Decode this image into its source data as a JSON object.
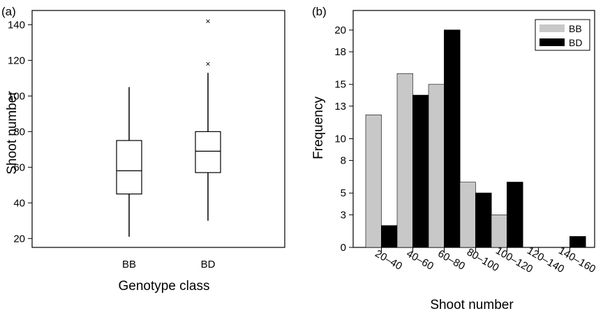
{
  "chart_data": [
    {
      "panel_label": "(a)",
      "type": "box",
      "xlabel": "Genotype class",
      "ylabel": "Shoot number",
      "ylim": [
        15,
        148
      ],
      "yticks": [
        20,
        40,
        60,
        80,
        100,
        120,
        140
      ],
      "categories": [
        "BB",
        "BD"
      ],
      "boxes": [
        {
          "category": "BB",
          "whisker_low": 21,
          "q1": 45,
          "median": 58,
          "q3": 75,
          "whisker_high": 105,
          "outliers": []
        },
        {
          "category": "BD",
          "whisker_low": 30,
          "q1": 57,
          "median": 69,
          "q3": 80,
          "whisker_high": 113,
          "outliers": [
            118,
            142
          ]
        }
      ],
      "grid": false
    },
    {
      "panel_label": "(b)",
      "type": "bar",
      "xlabel": "Shoot number",
      "ylabel": "Frequency",
      "ylim": [
        0,
        21.8
      ],
      "yticks": [
        0,
        3,
        5,
        8,
        10,
        13,
        15,
        18,
        20
      ],
      "categories": [
        "20–40",
        "40–60",
        "60–80",
        "80–100",
        "100–120",
        "120–140",
        "140–160"
      ],
      "series": [
        {
          "name": "BB",
          "color": "#c8c8c8",
          "values": [
            12.2,
            16,
            15,
            6,
            3,
            0,
            0
          ]
        },
        {
          "name": "BD",
          "color": "#000000",
          "values": [
            2,
            14,
            20,
            5,
            6,
            0,
            1
          ]
        }
      ],
      "legend": "top-right",
      "grid": false
    }
  ]
}
